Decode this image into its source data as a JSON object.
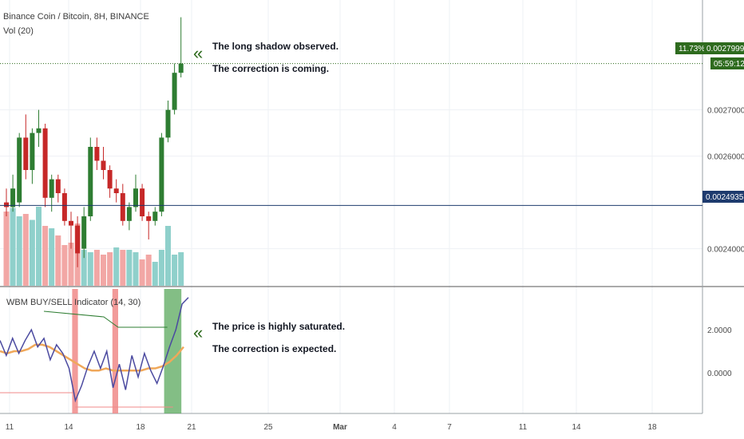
{
  "header": {
    "symbol_title": "Binance Coin / Bitcoin, 8H, BINANCE",
    "volume_label": "Vol (20)"
  },
  "indicator": {
    "label": "WBM BUY/SELL Indicator (14, 30)"
  },
  "annotations": {
    "top_line1": "The long shadow observed.",
    "top_line2": "The correction is coming.",
    "bottom_line1": "The price is highly saturated.",
    "bottom_line2": "The correction is expected.",
    "chevron": "«"
  },
  "tags": {
    "percent": "11.73%",
    "last_price": "0.0027999",
    "countdown": "05:59:12",
    "level_price": "0.0024935"
  },
  "colors": {
    "bull": "#2e7d32",
    "bear": "#c62828",
    "vol_bull": "#8fd0cb",
    "vol_bear": "#f2a7a5",
    "osc_line": "#4b4aa0",
    "osc_signal": "#f0a85a",
    "green_zone": "#5aa85c",
    "red_zone": "#f08a88",
    "level_line": "#1e3b6e",
    "price_tag": "#2e6b1e"
  },
  "chart_data": {
    "type": "candlestick",
    "price_axis": {
      "ticks": [
        0.0024,
        0.0026,
        0.0027
      ],
      "range": [
        0.00232,
        0.00292
      ]
    },
    "x_axis": {
      "ticks": [
        "11",
        "14",
        "18",
        "21",
        "25",
        "Mar",
        "4",
        "7",
        "11",
        "14",
        "18"
      ]
    },
    "horizontal_level": 0.0024935,
    "last_price": 0.0027999,
    "candles": [
      {
        "o": 0.0025,
        "h": 0.00253,
        "l": 0.00247,
        "c": 0.00249
      },
      {
        "o": 0.00249,
        "h": 0.00256,
        "l": 0.00248,
        "c": 0.00253
      },
      {
        "o": 0.0025,
        "h": 0.00265,
        "l": 0.00249,
        "c": 0.00264
      },
      {
        "o": 0.00264,
        "h": 0.00269,
        "l": 0.00255,
        "c": 0.00257
      },
      {
        "o": 0.00257,
        "h": 0.00266,
        "l": 0.00254,
        "c": 0.00265
      },
      {
        "o": 0.00265,
        "h": 0.0027,
        "l": 0.00262,
        "c": 0.00266
      },
      {
        "o": 0.00266,
        "h": 0.00267,
        "l": 0.00249,
        "c": 0.00251
      },
      {
        "o": 0.00251,
        "h": 0.00256,
        "l": 0.00248,
        "c": 0.00255
      },
      {
        "o": 0.00255,
        "h": 0.00256,
        "l": 0.0025,
        "c": 0.00252
      },
      {
        "o": 0.00252,
        "h": 0.00253,
        "l": 0.00245,
        "c": 0.00246
      },
      {
        "o": 0.00246,
        "h": 0.00248,
        "l": 0.0024,
        "c": 0.00245
      },
      {
        "o": 0.00245,
        "h": 0.00247,
        "l": 0.00236,
        "c": 0.00239
      },
      {
        "o": 0.0024,
        "h": 0.00249,
        "l": 0.00238,
        "c": 0.00247
      },
      {
        "o": 0.00247,
        "h": 0.00264,
        "l": 0.00246,
        "c": 0.00262
      },
      {
        "o": 0.00262,
        "h": 0.00264,
        "l": 0.00257,
        "c": 0.00259
      },
      {
        "o": 0.00259,
        "h": 0.00262,
        "l": 0.00255,
        "c": 0.00257
      },
      {
        "o": 0.00257,
        "h": 0.00258,
        "l": 0.00251,
        "c": 0.00253
      },
      {
        "o": 0.00253,
        "h": 0.00255,
        "l": 0.0025,
        "c": 0.00252
      },
      {
        "o": 0.00252,
        "h": 0.00254,
        "l": 0.00245,
        "c": 0.00246
      },
      {
        "o": 0.00246,
        "h": 0.0025,
        "l": 0.00244,
        "c": 0.00249
      },
      {
        "o": 0.00249,
        "h": 0.00256,
        "l": 0.00248,
        "c": 0.00253
      },
      {
        "o": 0.00253,
        "h": 0.00254,
        "l": 0.00246,
        "c": 0.00247
      },
      {
        "o": 0.00247,
        "h": 0.00248,
        "l": 0.00242,
        "c": 0.00246
      },
      {
        "o": 0.00246,
        "h": 0.00249,
        "l": 0.00245,
        "c": 0.00248
      },
      {
        "o": 0.00248,
        "h": 0.00265,
        "l": 0.00247,
        "c": 0.00264
      },
      {
        "o": 0.00264,
        "h": 0.00272,
        "l": 0.00263,
        "c": 0.0027
      },
      {
        "o": 0.0027,
        "h": 0.0028,
        "l": 0.00269,
        "c": 0.00278
      },
      {
        "o": 0.00278,
        "h": 0.0029,
        "l": 0.00277,
        "c": 0.0028
      }
    ],
    "volume": [
      {
        "v": 0.62,
        "up": false
      },
      {
        "v": 0.65,
        "up": true
      },
      {
        "v": 0.58,
        "up": true
      },
      {
        "v": 0.6,
        "up": false
      },
      {
        "v": 0.55,
        "up": true
      },
      {
        "v": 0.66,
        "up": true
      },
      {
        "v": 0.5,
        "up": false
      },
      {
        "v": 0.48,
        "up": true
      },
      {
        "v": 0.42,
        "up": false
      },
      {
        "v": 0.34,
        "up": false
      },
      {
        "v": 0.36,
        "up": false
      },
      {
        "v": 0.52,
        "up": false
      },
      {
        "v": 0.3,
        "up": true
      },
      {
        "v": 0.28,
        "up": true
      },
      {
        "v": 0.3,
        "up": false
      },
      {
        "v": 0.26,
        "up": false
      },
      {
        "v": 0.28,
        "up": false
      },
      {
        "v": 0.32,
        "up": true
      },
      {
        "v": 0.3,
        "up": false
      },
      {
        "v": 0.3,
        "up": true
      },
      {
        "v": 0.28,
        "up": true
      },
      {
        "v": 0.22,
        "up": false
      },
      {
        "v": 0.26,
        "up": false
      },
      {
        "v": 0.2,
        "up": true
      },
      {
        "v": 0.3,
        "up": true
      },
      {
        "v": 0.5,
        "up": true
      },
      {
        "v": 0.26,
        "up": true
      },
      {
        "v": 0.28,
        "up": true
      }
    ],
    "oscillator": {
      "axis_ticks": [
        2.0,
        0.0
      ],
      "range": [
        -1.9,
        3.9
      ],
      "line": [
        1.5,
        0.8,
        1.6,
        0.9,
        1.5,
        2.0,
        1.2,
        1.6,
        0.6,
        1.3,
        0.9,
        0.2,
        -1.3,
        -0.6,
        0.3,
        1.0,
        0.2,
        1.0,
        -0.7,
        0.4,
        -0.8,
        0.8,
        -0.2,
        0.9,
        0.1,
        -0.5,
        0.3,
        1.2,
        2.0,
        3.2,
        3.5
      ],
      "signal": [
        1.0,
        0.9,
        1.0,
        1.0,
        1.1,
        1.3,
        1.3,
        1.2,
        1.0,
        0.8,
        0.6,
        0.4,
        0.2,
        0.1,
        0.1,
        0.2,
        0.1,
        0.1,
        0.1,
        0.1,
        0.1,
        0.2,
        0.2,
        0.3,
        0.5,
        0.8,
        1.2
      ],
      "zones": [
        {
          "type": "red",
          "from": 12,
          "to": 13
        },
        {
          "type": "red",
          "from": 19,
          "to": 20
        },
        {
          "type": "green",
          "from": 28,
          "to": 31
        }
      ]
    }
  }
}
